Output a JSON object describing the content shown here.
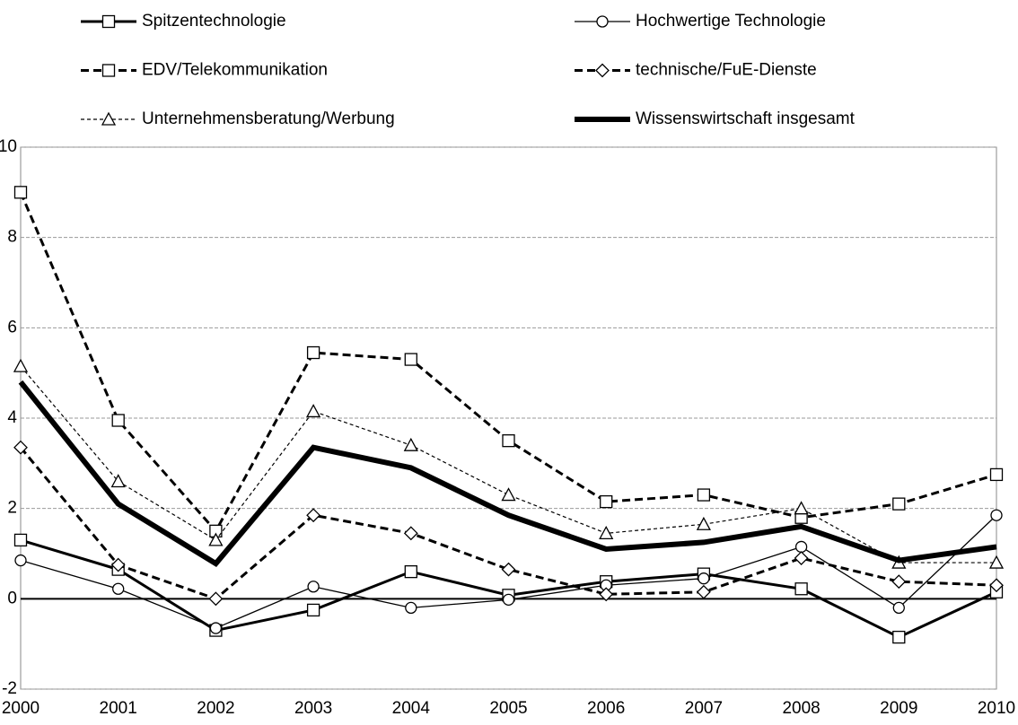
{
  "chart_data": {
    "type": "line",
    "categories": [
      "2000",
      "2001",
      "2002",
      "2003",
      "2004",
      "2005",
      "2006",
      "2007",
      "2008",
      "2009",
      "2010"
    ],
    "ylim": [
      -2,
      10
    ],
    "yticks": [
      -2,
      0,
      2,
      4,
      6,
      8,
      10
    ],
    "grid": true,
    "series": [
      {
        "name": "Spitzentechnologie",
        "color": "#000000",
        "dash": "none",
        "width": 3,
        "marker": "square",
        "values": [
          1.3,
          0.65,
          -0.7,
          -0.25,
          0.6,
          0.08,
          0.38,
          0.55,
          0.22,
          -0.85,
          0.15
        ]
      },
      {
        "name": "Hochwertige Technologie",
        "color": "#000000",
        "dash": "none",
        "width": 1.3,
        "marker": "circle",
        "values": [
          0.85,
          0.22,
          -0.65,
          0.27,
          -0.2,
          -0.02,
          0.3,
          0.45,
          1.15,
          -0.2,
          1.85
        ]
      },
      {
        "name": "EDV/Telekommunikation",
        "color": "#000000",
        "dash": "9,5",
        "width": 3,
        "marker": "square",
        "values": [
          9.0,
          3.95,
          1.5,
          5.45,
          5.3,
          3.5,
          2.15,
          2.3,
          1.8,
          2.1,
          2.75
        ]
      },
      {
        "name": "technische/FuE-Dienste",
        "color": "#000000",
        "dash": "9,5",
        "width": 3,
        "marker": "diamond",
        "values": [
          3.35,
          0.75,
          0.0,
          1.85,
          1.45,
          0.65,
          0.1,
          0.15,
          0.9,
          0.38,
          0.3
        ]
      },
      {
        "name": "Unternehmensberatung/Werbung",
        "color": "#000000",
        "dash": "4,3",
        "width": 1.2,
        "marker": "triangle",
        "values": [
          5.15,
          2.6,
          1.3,
          4.15,
          3.4,
          2.3,
          1.45,
          1.65,
          2.0,
          0.8,
          0.8
        ]
      },
      {
        "name": "Wissenswirtschaft insgesamt",
        "color": "#000000",
        "dash": "none",
        "width": 6,
        "marker": "none",
        "values": [
          4.8,
          2.1,
          0.78,
          3.35,
          2.9,
          1.85,
          1.1,
          1.25,
          1.6,
          0.85,
          1.15
        ]
      }
    ]
  }
}
